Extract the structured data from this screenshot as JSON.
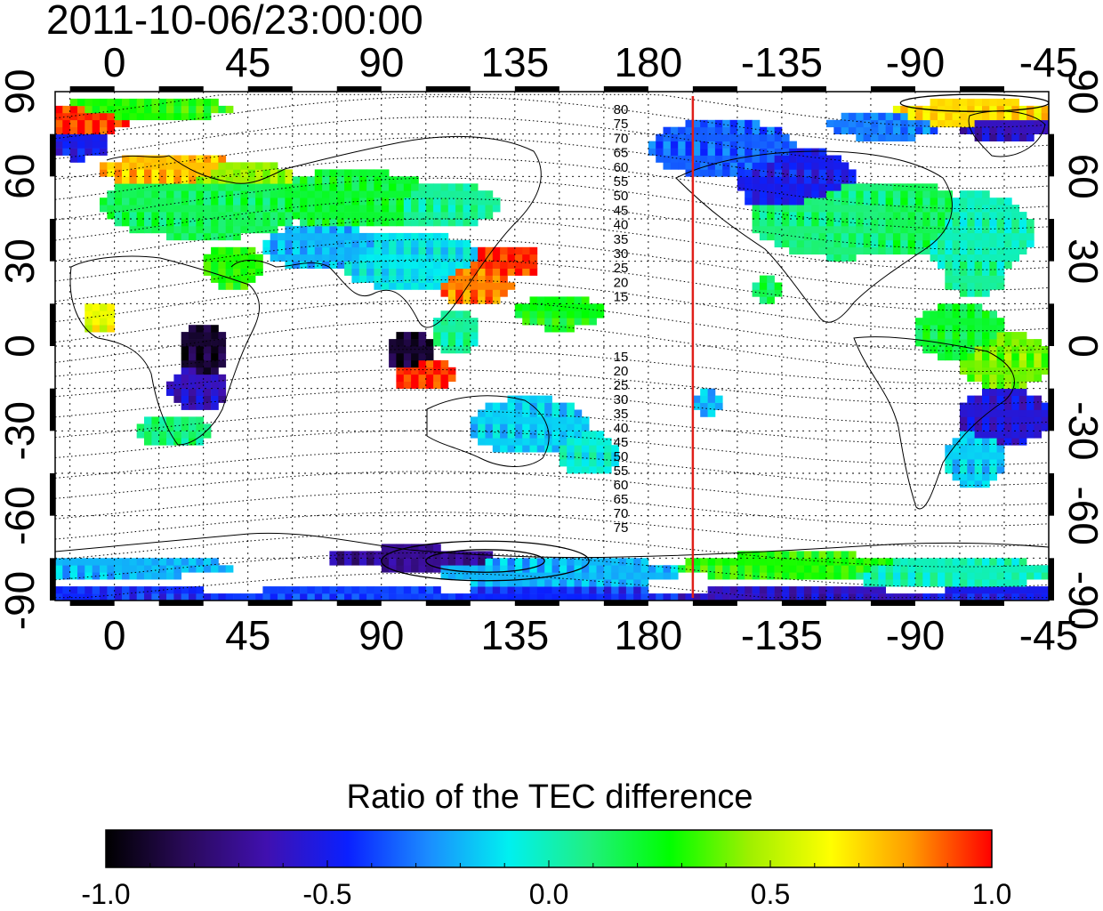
{
  "map": {
    "timestamp": "2011-10-06/23:00:00",
    "top_lon_labels": [
      "0",
      "45",
      "90",
      "135",
      "180",
      "-135",
      "-90",
      "-45"
    ],
    "bottom_lon_labels": [
      "0",
      "45",
      "90",
      "135",
      "180",
      "-135",
      "-90",
      "-45"
    ],
    "left_lat_labels": [
      "90",
      "60",
      "30",
      "0",
      "-30",
      "-60",
      "-90"
    ],
    "right_lat_labels": [
      "90",
      "60",
      "30",
      "0",
      "-30",
      "-60",
      "-90"
    ],
    "lon_ticks_deg": [
      0,
      45,
      90,
      135,
      180,
      225,
      270,
      315
    ],
    "lat_ticks_deg": [
      90,
      60,
      30,
      0,
      -30,
      -60,
      -90
    ],
    "lon_range_deg": [
      -20,
      315
    ],
    "lat_range_deg": [
      -90,
      90
    ],
    "grid": "dotted",
    "terminator_lon_deg": 195,
    "terminator_color": "#e0201a",
    "contour_labels_north": [
      "80",
      "75",
      "70",
      "65",
      "60",
      "55",
      "50",
      "45",
      "40",
      "35",
      "30",
      "25",
      "20",
      "15"
    ],
    "contour_labels_south": [
      "15",
      "20",
      "25",
      "30",
      "35",
      "40",
      "45",
      "50",
      "55",
      "60",
      "65",
      "70",
      "75"
    ]
  },
  "colorbar": {
    "title": "Ratio of the TEC difference",
    "min": -1.0,
    "max": 1.0,
    "tick_labels": [
      "-1.0",
      "-0.5",
      "0.0",
      "0.5",
      "1.0"
    ],
    "colors": [
      "#000000",
      "#2a0a5a",
      "#4010b0",
      "#0a20ff",
      "#1b8cff",
      "#00f0f0",
      "#20f080",
      "#00ff00",
      "#a0f000",
      "#ffff00",
      "#ff9a00",
      "#ff0000"
    ]
  }
}
